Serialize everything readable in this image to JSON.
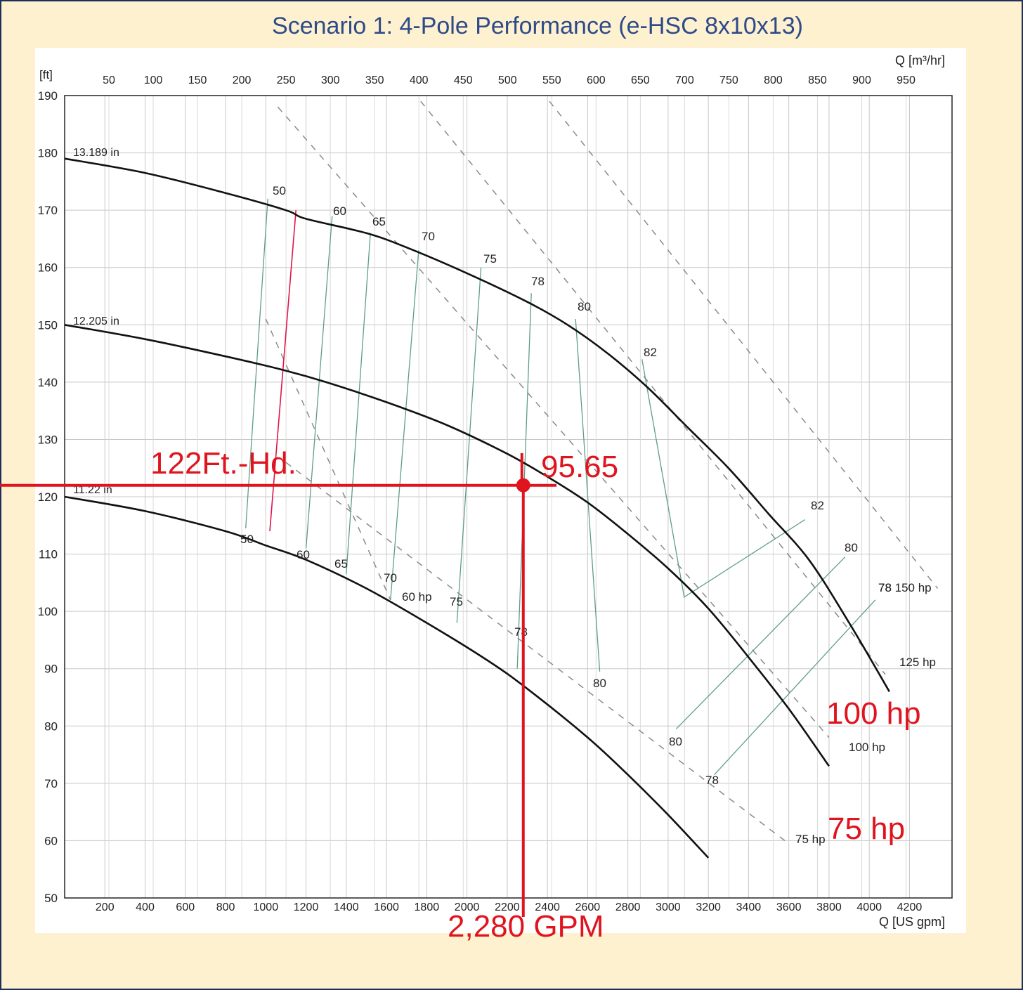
{
  "title": "Scenario 1: 4-Pole Performance (e-HSC 8x10x13)",
  "colors": {
    "background": "#fdf1cf",
    "frame": "#1e2f5c",
    "title": "#2e4a8a",
    "curve": "#111111",
    "efficiency_line": "#5e9e86",
    "power_line": "#8a8a8a",
    "grid": "#c8c8c8",
    "highlight_line": "#e0144c",
    "annotation": "#e0141e",
    "axis_unit_q": "#1f3a8a"
  },
  "chart_data": {
    "type": "line",
    "title": "Scenario 1: 4-Pole Performance (e-HSC 8x10x13)",
    "ylabel": "[ft]",
    "xlabel": "Q [US gpm]",
    "secondary_xlabel": "Q [m³/hr]",
    "ylim": [
      50,
      190
    ],
    "xlim": [
      0,
      4400
    ],
    "grid": true,
    "y_ticks": [
      "50",
      "60",
      "70",
      "80",
      "90",
      "100",
      "110",
      "120",
      "130",
      "140",
      "150",
      "160",
      "170",
      "180",
      "190"
    ],
    "x_ticks": [
      "200",
      "400",
      "600",
      "800",
      "1000",
      "1200",
      "1400",
      "1600",
      "1800",
      "2000",
      "2200",
      "2400",
      "2600",
      "2800",
      "3000",
      "3200",
      "3400",
      "3600",
      "3800",
      "4000",
      "4200"
    ],
    "top_ticks": [
      "50",
      "100",
      "150",
      "200",
      "250",
      "300",
      "350",
      "400",
      "450",
      "500",
      "550",
      "600",
      "650",
      "700",
      "750",
      "800",
      "850",
      "900",
      "950"
    ],
    "series": [
      {
        "name": "13.189 in",
        "x": [
          0,
          400,
          800,
          1100,
          1200,
          1500,
          1700,
          2000,
          2300,
          2500,
          2700,
          2900,
          3100,
          3300,
          3500,
          3700,
          3900,
          4100
        ],
        "y": [
          179,
          176.5,
          173,
          170,
          168.5,
          166,
          163.5,
          159,
          154,
          150,
          145,
          139,
          132,
          125,
          117,
          109,
          98,
          86
        ]
      },
      {
        "name": "12.205 in",
        "x": [
          0,
          400,
          800,
          1100,
          1300,
          1600,
          1900,
          2200,
          2400,
          2600,
          2800,
          3000,
          3200,
          3400,
          3600,
          3800
        ],
        "y": [
          150,
          147.5,
          144.5,
          142,
          140,
          136.5,
          132.5,
          127.5,
          123.5,
          119,
          113.5,
          107.5,
          100.5,
          92,
          83,
          73
        ]
      },
      {
        "name": "11.22 in",
        "x": [
          0,
          400,
          800,
          1000,
          1200,
          1500,
          1800,
          2100,
          2300,
          2600,
          2800,
          3000,
          3200,
          3400,
          3500
        ],
        "y": [
          120,
          117.5,
          114,
          111.5,
          109,
          104,
          98,
          91.5,
          86.5,
          78,
          71.5,
          64.5,
          57,
          48,
          43
        ]
      }
    ],
    "curve_labels": [
      "13.189 in",
      "12.205 in",
      "11.22 in"
    ],
    "efficiency_labels": [
      "50",
      "60",
      "65",
      "70",
      "75",
      "78",
      "80",
      "82",
      "50",
      "60",
      "65",
      "70",
      "75",
      "78",
      "80",
      "80",
      "78",
      "82",
      "80",
      "78"
    ],
    "efficiency_lines": [
      {
        "label": "50",
        "points": [
          [
            1010,
            172
          ],
          [
            900,
            114.5
          ]
        ]
      },
      {
        "label": "60",
        "points": [
          [
            1330,
            169
          ],
          [
            1200,
            111
          ]
        ]
      },
      {
        "label": "65",
        "points": [
          [
            1520,
            166
          ],
          [
            1400,
            106.5
          ]
        ]
      },
      {
        "label": "70",
        "points": [
          [
            1760,
            163
          ],
          [
            1620,
            102
          ]
        ]
      },
      {
        "label": "75",
        "points": [
          [
            2070,
            160
          ],
          [
            1950,
            98
          ]
        ]
      },
      {
        "label": "78",
        "points": [
          [
            2320,
            155.5
          ],
          [
            2250,
            90
          ]
        ]
      },
      {
        "label": "80",
        "points": [
          [
            2540,
            151
          ],
          [
            2660,
            89.5
          ]
        ]
      },
      {
        "label": "82",
        "points": [
          [
            2870,
            144
          ],
          [
            3080,
            102.5
          ],
          [
            3680,
            116
          ]
        ]
      },
      {
        "label": "80",
        "points": [
          [
            3040,
            79.5
          ],
          [
            3880,
            109.5
          ]
        ]
      },
      {
        "label": "78",
        "points": [
          [
            3230,
            71.5
          ],
          [
            4030,
            102
          ]
        ]
      }
    ],
    "highlight_line": {
      "points": [
        [
          1150,
          170
        ],
        [
          1020,
          114
        ]
      ]
    },
    "power_lines": [
      {
        "label": "60 hp",
        "points": [
          [
            1000,
            151
          ],
          [
            1620,
            102
          ]
        ]
      },
      {
        "label": "75 hp",
        "points": [
          [
            1100,
            126
          ],
          [
            3580,
            60
          ]
        ]
      },
      {
        "label": "100 hp",
        "points": [
          [
            1060,
            188
          ],
          [
            3800,
            78
          ]
        ]
      },
      {
        "label": "125 hp",
        "points": [
          [
            1770,
            189
          ],
          [
            4080,
            89
          ]
        ]
      },
      {
        "label": "150 hp",
        "points": [
          [
            2410,
            189
          ],
          [
            4340,
            104
          ]
        ]
      }
    ],
    "power_labels": [
      "60 hp",
      "75 hp",
      "100 hp",
      "125 hp",
      "78 150 hp"
    ],
    "operating_point": {
      "x": 2280,
      "y": 122
    }
  },
  "annotations": {
    "head": "122Ft.-Hd.",
    "efficiency": "95.65",
    "flow": "2,280 GPM",
    "hp100": "100 hp",
    "hp75": "75 hp"
  }
}
